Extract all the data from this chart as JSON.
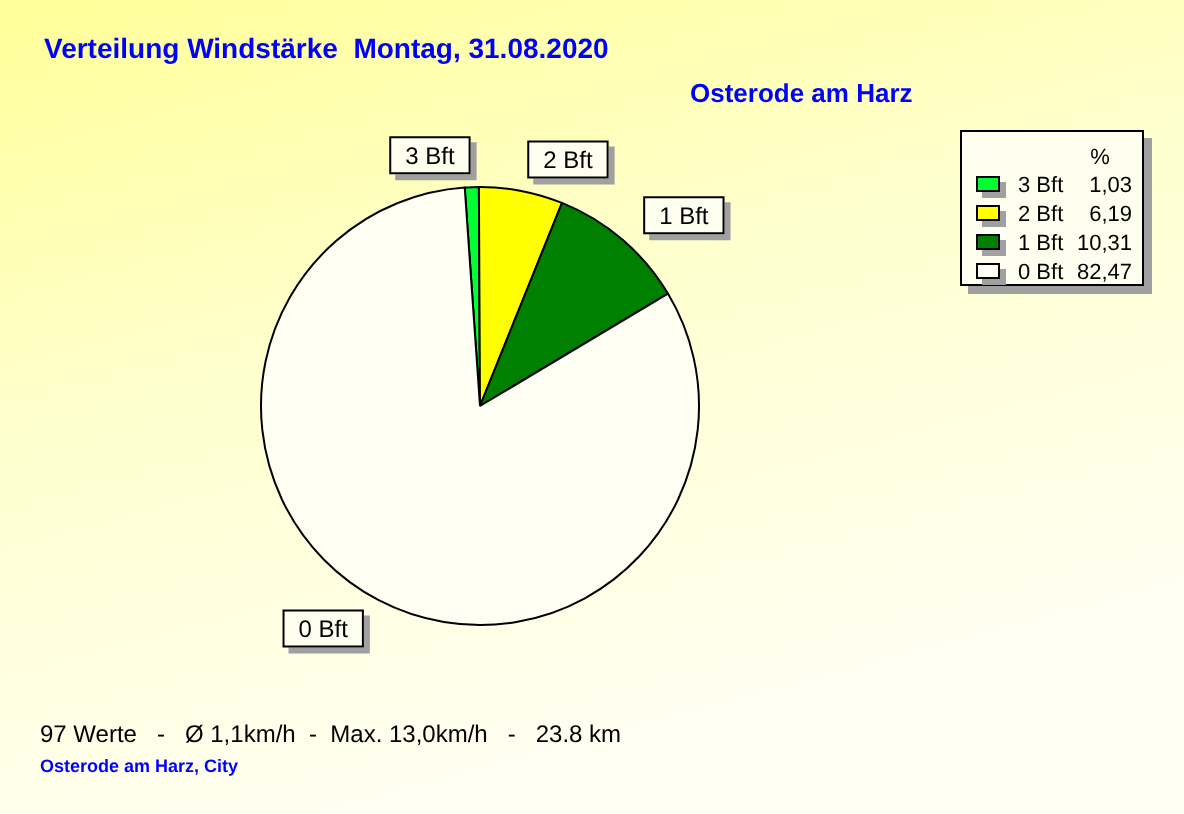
{
  "chart_data": {
    "type": "pie",
    "title": "Verteilung Windstärke  Montag, 31.08.2020",
    "subtitle": "Osterode am Harz",
    "legend_title": "%",
    "categories": [
      "3 Bft",
      "2 Bft",
      "1 Bft",
      "0 Bft"
    ],
    "values": [
      1.03,
      6.19,
      10.31,
      82.47
    ],
    "value_labels": [
      "1,03",
      "6,19",
      "10,31",
      "82,47"
    ],
    "colors": [
      "#00ff33",
      "#ffff00",
      "#008000",
      "#fffff4"
    ],
    "legend": "top right",
    "annotations": [
      "97 Werte   -   Ø 1,1km/h  -  Max. 13,0km/h   -   23.8 km",
      "Osterode am Harz, City"
    ]
  }
}
